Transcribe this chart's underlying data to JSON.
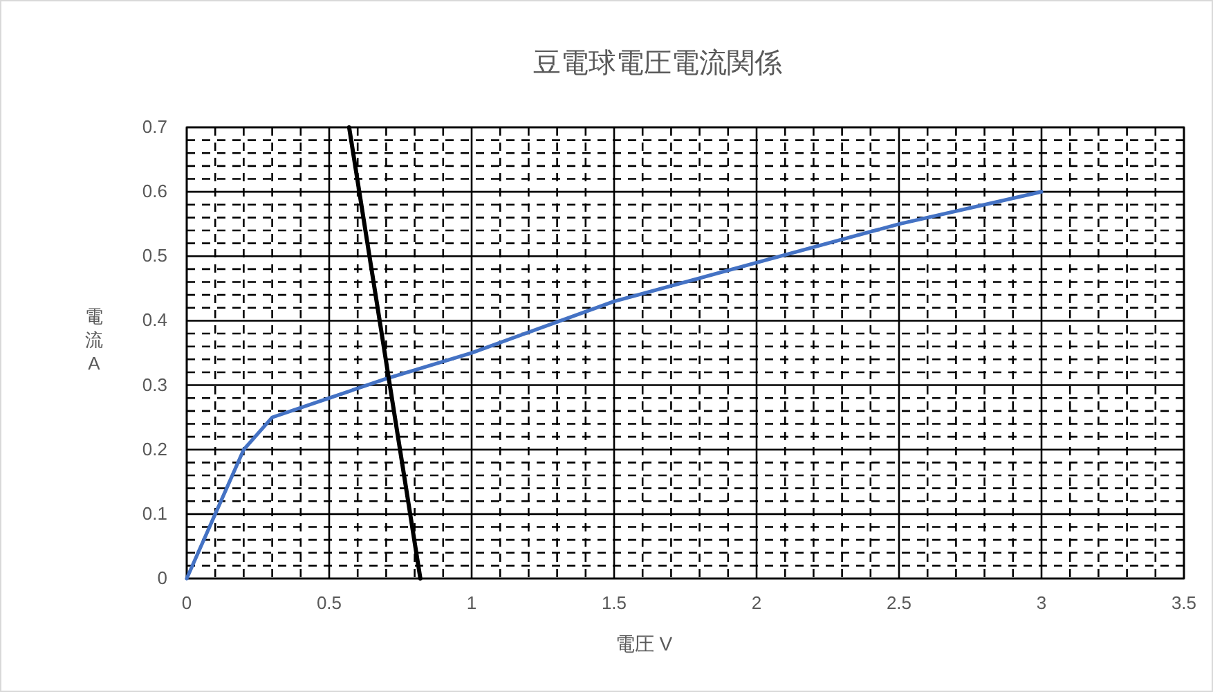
{
  "chart_data": {
    "type": "line",
    "title": "豆電球電圧電流関係",
    "xlabel": "電圧 V",
    "ylabel": "電流 A",
    "xlim": [
      0,
      3.5
    ],
    "xticks": [
      0,
      0.5,
      1,
      1.5,
      2,
      2.5,
      3,
      3.5
    ],
    "ylim": [
      0,
      0.7
    ],
    "yticks": [
      0,
      0.1,
      0.2,
      0.3,
      0.4,
      0.5,
      0.6,
      0.7
    ],
    "grid": true,
    "marker": "none",
    "line_style": "solid",
    "series": [
      {
        "color": "#4472c4",
        "x": [
          0,
          0.1,
          0.2,
          0.3,
          0.5,
          0.7,
          1,
          1.5,
          2,
          2.5,
          3
        ],
        "values": [
          0,
          0.1,
          0.2,
          0.25,
          0.28,
          0.31,
          0.35,
          0.43,
          0.49,
          0.55,
          0.6
        ]
      },
      {
        "color": "#000000",
        "x": [
          0.57,
          0.82
        ],
        "values": [
          0.7,
          0
        ]
      }
    ]
  }
}
